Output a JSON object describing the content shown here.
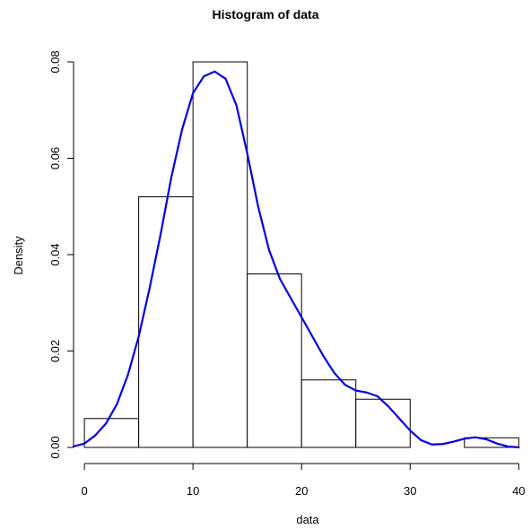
{
  "chart_data": {
    "type": "bar",
    "title": "Histogram of data",
    "xlabel": "data",
    "ylabel": "Density",
    "bins": [
      {
        "start": 0,
        "end": 5,
        "density": 0.006
      },
      {
        "start": 5,
        "end": 10,
        "density": 0.052
      },
      {
        "start": 10,
        "end": 15,
        "density": 0.08
      },
      {
        "start": 15,
        "end": 20,
        "density": 0.036
      },
      {
        "start": 20,
        "end": 25,
        "density": 0.014
      },
      {
        "start": 25,
        "end": 30,
        "density": 0.01
      },
      {
        "start": 30,
        "end": 35,
        "density": 0.0
      },
      {
        "start": 35,
        "end": 40,
        "density": 0.002
      }
    ],
    "x_ticks": [
      0,
      10,
      20,
      30,
      40
    ],
    "y_ticks": [
      0.0,
      0.02,
      0.04,
      0.06,
      0.08
    ],
    "x_tick_labels": [
      "0",
      "10",
      "20",
      "30",
      "40"
    ],
    "y_tick_labels": [
      "0.00",
      "0.02",
      "0.04",
      "0.06",
      "0.08"
    ],
    "xlim": [
      -1,
      40.8
    ],
    "ylim": [
      0,
      0.08
    ],
    "density_curve": {
      "color": "#0000dd",
      "points": [
        [
          -3.0,
          0.0
        ],
        [
          -1.0,
          0.0002
        ],
        [
          0.0,
          0.0008
        ],
        [
          1.0,
          0.0025
        ],
        [
          2.0,
          0.005
        ],
        [
          3.0,
          0.009
        ],
        [
          4.0,
          0.015
        ],
        [
          5.0,
          0.023
        ],
        [
          6.0,
          0.033
        ],
        [
          7.0,
          0.044
        ],
        [
          8.0,
          0.056
        ],
        [
          9.0,
          0.066
        ],
        [
          10.0,
          0.0735
        ],
        [
          11.0,
          0.077
        ],
        [
          12.0,
          0.078
        ],
        [
          13.0,
          0.0765
        ],
        [
          14.0,
          0.071
        ],
        [
          15.0,
          0.061
        ],
        [
          16.0,
          0.05
        ],
        [
          17.0,
          0.041
        ],
        [
          18.0,
          0.035
        ],
        [
          19.0,
          0.031
        ],
        [
          20.0,
          0.027
        ],
        [
          21.0,
          0.023
        ],
        [
          22.0,
          0.019
        ],
        [
          23.0,
          0.0155
        ],
        [
          24.0,
          0.013
        ],
        [
          25.0,
          0.0118
        ],
        [
          26.0,
          0.0114
        ],
        [
          27.0,
          0.0106
        ],
        [
          28.0,
          0.0085
        ],
        [
          29.0,
          0.006
        ],
        [
          30.0,
          0.0035
        ],
        [
          31.0,
          0.0015
        ],
        [
          32.0,
          0.0006
        ],
        [
          33.0,
          0.0007
        ],
        [
          34.0,
          0.0012
        ],
        [
          35.0,
          0.0018
        ],
        [
          36.0,
          0.0021
        ],
        [
          37.0,
          0.0017
        ],
        [
          38.0,
          0.0008
        ],
        [
          39.0,
          0.0002
        ],
        [
          40.0,
          0.0
        ]
      ]
    },
    "bar_color": "#ffffff",
    "bar_edge_color": "#000000",
    "grid": false,
    "legend": null
  }
}
